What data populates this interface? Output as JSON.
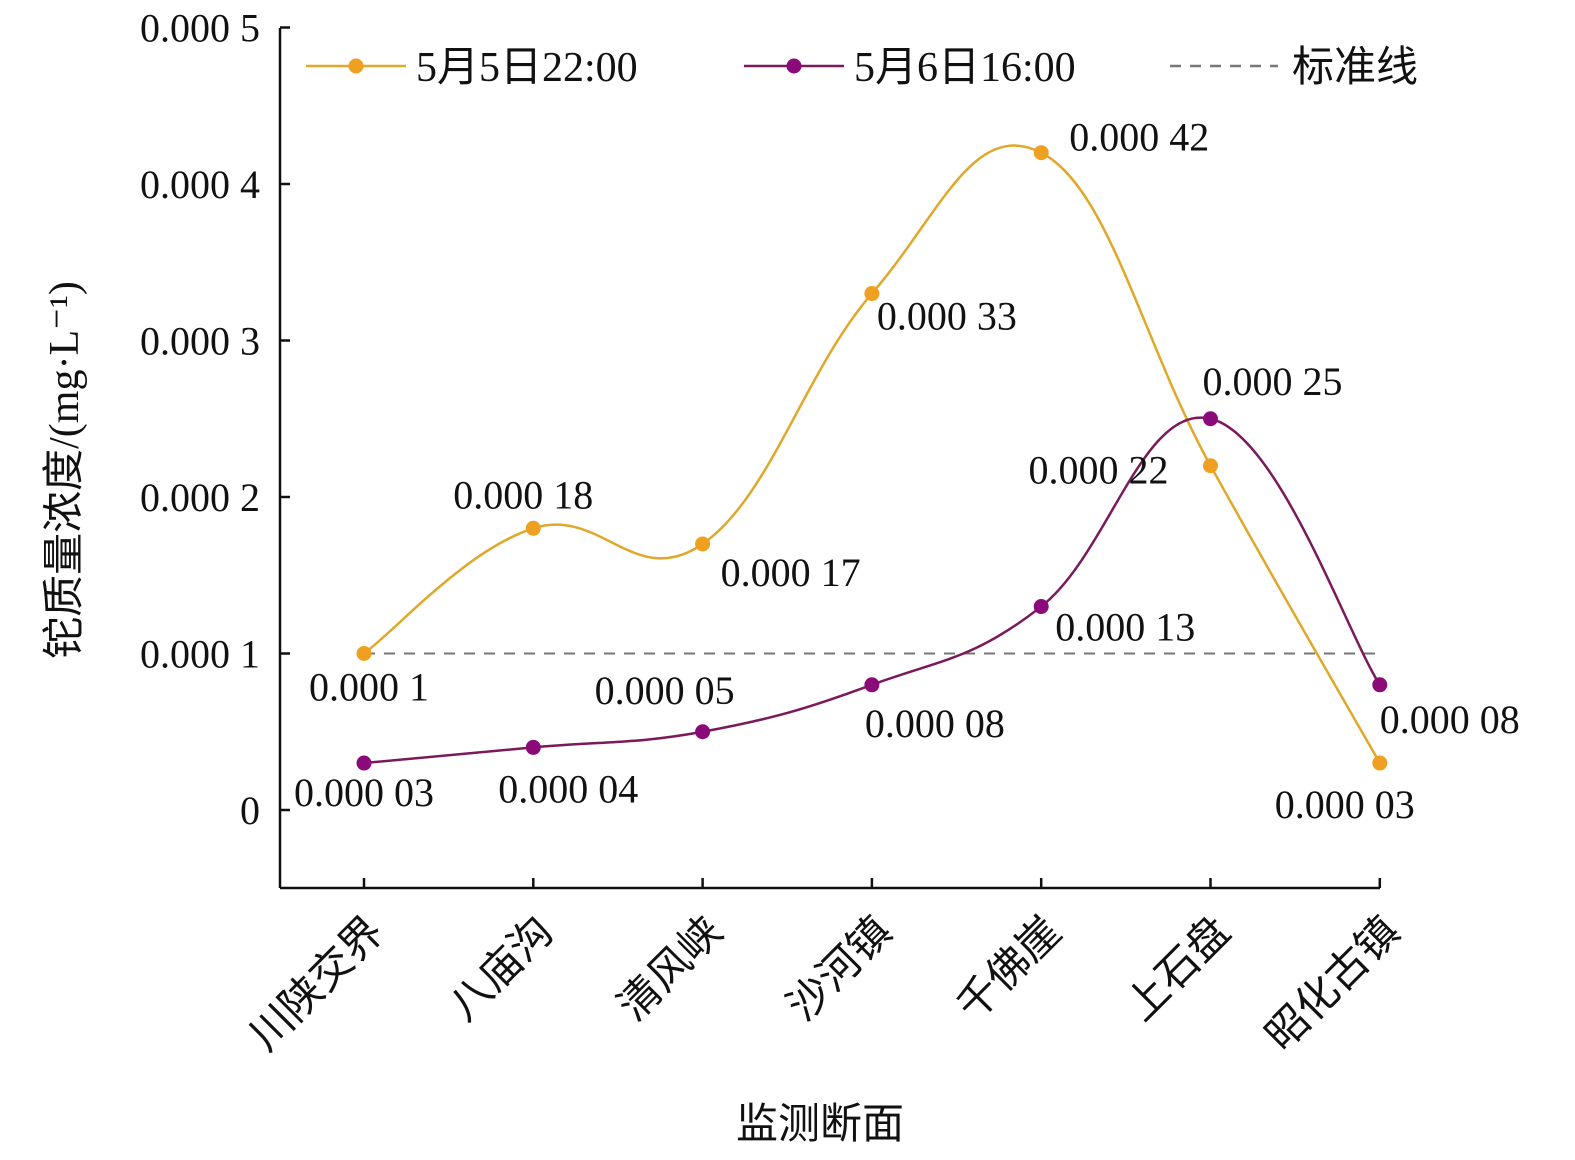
{
  "chart_data": {
    "type": "line",
    "xlabel": "监测断面",
    "ylabel": "铊质量浓度/(mg·L⁻¹)",
    "ylim": [
      -5e-05,
      0.0005
    ],
    "yticks": [
      {
        "value": 0,
        "label": "0"
      },
      {
        "value": 0.0001,
        "label": "0.000 1"
      },
      {
        "value": 0.0002,
        "label": "0.000 2"
      },
      {
        "value": 0.0003,
        "label": "0.000 3"
      },
      {
        "value": 0.0004,
        "label": "0.000 4"
      },
      {
        "value": 0.0005,
        "label": "0.000 5"
      }
    ],
    "categories": [
      "川陕交界",
      "八庙沟",
      "清风峡",
      "沙河镇",
      "千佛崖",
      "上石盘",
      "昭化古镇"
    ],
    "series": [
      {
        "name": "5月5日22:00",
        "color": "#f0a020",
        "lineColor": "#e0a82a",
        "values": [
          0.0001,
          0.00018,
          0.00017,
          0.00033,
          0.00042,
          0.00022,
          3e-05
        ],
        "labels": [
          "0.000 1",
          "0.000 18",
          "0.000 17",
          "0.000 33",
          "0.000 42",
          "0.000 22",
          "0.000 03"
        ]
      },
      {
        "name": "5月6日16:00",
        "color": "#8b0a7a",
        "lineColor": "#7a1a5a",
        "values": [
          3e-05,
          4e-05,
          5e-05,
          8e-05,
          0.00013,
          0.00025,
          8e-05
        ],
        "labels": [
          "0.000 03",
          "0.000 04",
          "0.000 05",
          "0.000 08",
          "0.000 13",
          "0.000 25",
          "0.000 08"
        ]
      }
    ],
    "reference_line": {
      "name": "标准线",
      "value": 0.0001,
      "color": "#777777"
    },
    "legend_placement": "top",
    "grid": false
  }
}
